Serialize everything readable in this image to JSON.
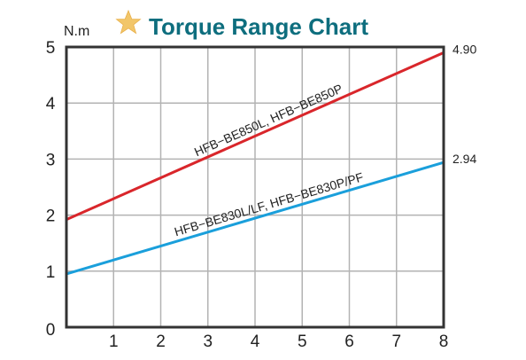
{
  "chart_data": {
    "type": "line",
    "title": "Torque Range Chart",
    "ylabel": "N.m",
    "xlabel": "",
    "xlim": [
      0,
      8
    ],
    "ylim": [
      0,
      5
    ],
    "x_ticks": [
      "1",
      "2",
      "3",
      "4",
      "5",
      "6",
      "7",
      "8"
    ],
    "y_ticks": [
      "0",
      "1",
      "2",
      "3",
      "4",
      "5"
    ],
    "grid": true,
    "series": [
      {
        "name": "HFB−BE850L, HFB−BE850P",
        "color": "#d9262b",
        "points": [
          [
            0,
            1.92
          ],
          [
            8,
            4.9
          ]
        ],
        "end_label": "4.90"
      },
      {
        "name": "HFB−BE830L/LF, HFB−BE830P/PF",
        "color": "#1a9fdb",
        "points": [
          [
            0,
            0.95
          ],
          [
            8,
            2.94
          ]
        ],
        "end_label": "2.94"
      }
    ],
    "colors": {
      "title": "#0e6e7e",
      "star": "#f2c66a",
      "grid": "#b3b3b3",
      "axis": "#333333"
    }
  }
}
